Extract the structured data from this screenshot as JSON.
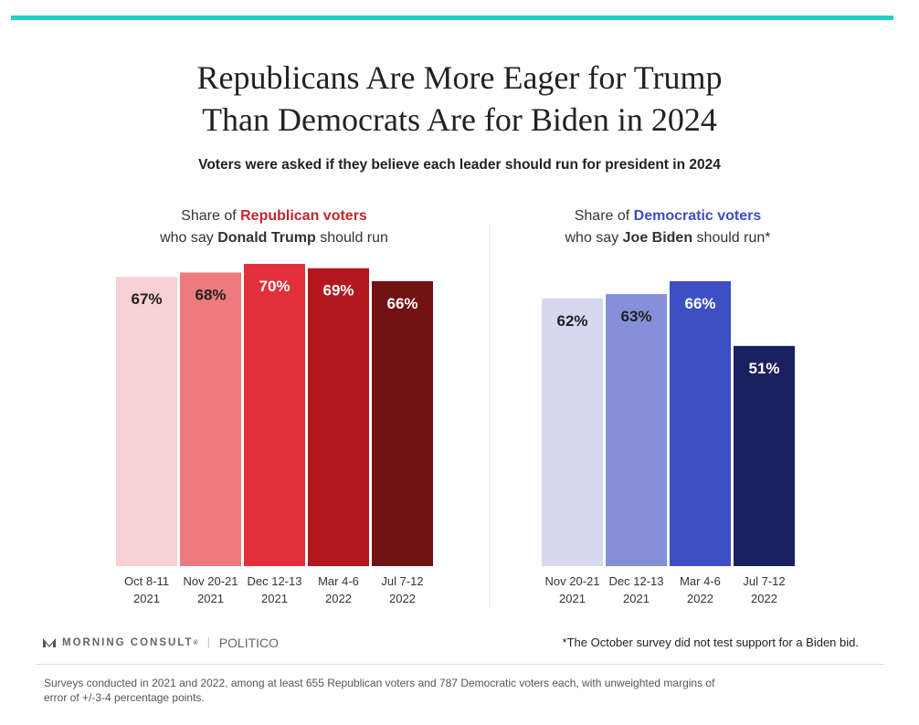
{
  "title_line1": "Republicans Are More Eager for Trump",
  "title_line2": "Than Democrats Are for Biden in 2024",
  "subtitle": "Voters were asked if they believe each leader should run for president in 2024",
  "left_panel": {
    "head_prefix": "Share of ",
    "head_party": "Republican voters",
    "head_line2_prefix": "who say ",
    "head_name": "Donald Trump",
    "head_line2_suffix": " should run"
  },
  "right_panel": {
    "head_prefix": "Share of ",
    "head_party": "Democratic voters",
    "head_line2_prefix": "who say ",
    "head_name": "Joe Biden",
    "head_line2_suffix": " should run*"
  },
  "footer": {
    "brand": "MORNING CONSULT",
    "brand_mark": "®",
    "separator": "|",
    "partner": "POLITICO",
    "footnote": "*The October survey did not test support for a Biden bid.",
    "source": "Surveys conducted in 2021 and 2022, among at least 655 Republican voters and 787 Democratic voters each, with unweighted margins of error of +/-3-4 percentage points."
  },
  "colors": {
    "accent_bar": "#22d0c8",
    "republican": "#c0272d",
    "democratic": "#3d4fc4"
  },
  "chart_data": [
    {
      "type": "bar",
      "title": "Share of Republican voters who say Donald Trump should run",
      "categories": [
        "Oct 8-11 2021",
        "Nov 20-21 2021",
        "Dec 12-13 2021",
        "Mar 4-6 2022",
        "Jul 7-12 2022"
      ],
      "category_lines": [
        [
          "Oct 8-11",
          "2021"
        ],
        [
          "Nov 20-21",
          "2021"
        ],
        [
          "Dec 12-13",
          "2021"
        ],
        [
          "Mar 4-6",
          "2022"
        ],
        [
          "Jul 7-12",
          "2022"
        ]
      ],
      "values": [
        67,
        68,
        70,
        69,
        66
      ],
      "labels": [
        "67%",
        "68%",
        "70%",
        "69%",
        "66%"
      ],
      "bar_colors": [
        "#f9d0d3",
        "#ef7a7e",
        "#e2303a",
        "#b3171f",
        "#731215"
      ],
      "label_colors": [
        "#222222",
        "#222222",
        "#ffffff",
        "#ffffff",
        "#ffffff"
      ],
      "unit": "%",
      "ylim": [
        0,
        70
      ],
      "grid": false
    },
    {
      "type": "bar",
      "title": "Share of Democratic voters who say Joe Biden should run*",
      "categories": [
        "Nov 20-21 2021",
        "Dec 12-13 2021",
        "Mar 4-6 2022",
        "Jul 7-12 2022"
      ],
      "category_lines": [
        [
          "Nov 20-21",
          "2021"
        ],
        [
          "Dec 12-13",
          "2021"
        ],
        [
          "Mar 4-6",
          "2022"
        ],
        [
          "Jul 7-12",
          "2022"
        ]
      ],
      "values": [
        62,
        63,
        66,
        51
      ],
      "labels": [
        "62%",
        "63%",
        "66%",
        "51%"
      ],
      "bar_colors": [
        "#d6d8f2",
        "#8690da",
        "#3d4fc4",
        "#1b2160"
      ],
      "label_colors": [
        "#222222",
        "#222222",
        "#ffffff",
        "#ffffff"
      ],
      "unit": "%",
      "ylim": [
        0,
        70
      ],
      "grid": false
    }
  ]
}
